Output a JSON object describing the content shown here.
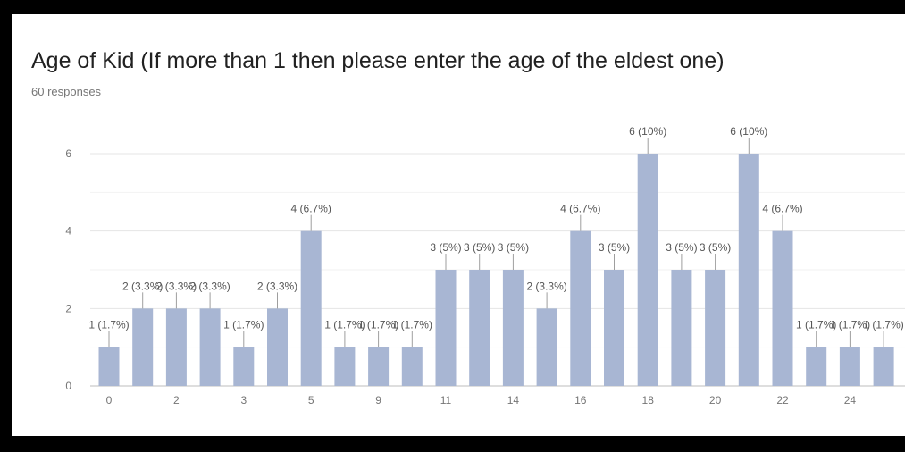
{
  "card": {
    "title": "Age of Kid (If more than 1 then please enter the age of the eldest one)",
    "subtitle": "60 responses"
  },
  "colors": {
    "bar": "#a8b6d3",
    "grid": "#e5e5e5",
    "axis": "#bdbdbd",
    "label": "#555555",
    "tick": "#757575",
    "leader": "#9e9e9e"
  },
  "chart_data": {
    "type": "bar",
    "ylim": [
      0,
      6
    ],
    "yticks": [
      "0",
      "2",
      "4",
      "6"
    ],
    "bars": [
      {
        "count": 1,
        "label": "1 (1.7%)",
        "tick": "0"
      },
      {
        "count": 2,
        "label": "2 (3.3%)",
        "tick": ""
      },
      {
        "count": 2,
        "label": "2 (3.3%)",
        "tick": "2"
      },
      {
        "count": 2,
        "label": "2 (3.3%)",
        "tick": ""
      },
      {
        "count": 1,
        "label": "1 (1.7%)",
        "tick": "3"
      },
      {
        "count": 2,
        "label": "2 (3.3%)",
        "tick": ""
      },
      {
        "count": 4,
        "label": "4 (6.7%)",
        "tick": "5"
      },
      {
        "count": 1,
        "label": "1 (1.7%)",
        "tick": ""
      },
      {
        "count": 1,
        "label": "1 (1.7%)",
        "tick": "9"
      },
      {
        "count": 1,
        "label": "1 (1.7%)",
        "tick": ""
      },
      {
        "count": 3,
        "label": "3 (5%)",
        "tick": "11"
      },
      {
        "count": 3,
        "label": "3 (5%)",
        "tick": ""
      },
      {
        "count": 3,
        "label": "3 (5%)",
        "tick": "14"
      },
      {
        "count": 2,
        "label": "2 (3.3%)",
        "tick": ""
      },
      {
        "count": 4,
        "label": "4 (6.7%)",
        "tick": "16"
      },
      {
        "count": 3,
        "label": "3 (5%)",
        "tick": ""
      },
      {
        "count": 6,
        "label": "6 (10%)",
        "tick": "18"
      },
      {
        "count": 3,
        "label": "3 (5%)",
        "tick": ""
      },
      {
        "count": 3,
        "label": "3 (5%)",
        "tick": "20"
      },
      {
        "count": 6,
        "label": "6 (10%)",
        "tick": ""
      },
      {
        "count": 4,
        "label": "4 (6.7%)",
        "tick": "22"
      },
      {
        "count": 1,
        "label": "1 (1.7%)",
        "tick": ""
      },
      {
        "count": 1,
        "label": "1 (1.7%)",
        "tick": "24"
      },
      {
        "count": 1,
        "label": "1 (1.7%)",
        "tick": ""
      }
    ]
  }
}
